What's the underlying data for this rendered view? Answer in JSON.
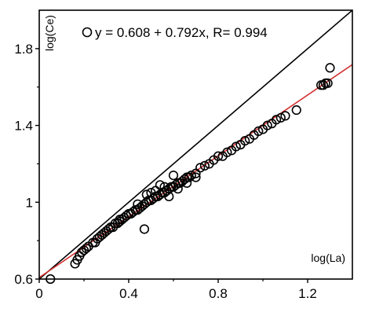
{
  "chart_data": {
    "type": "scatter",
    "title": "",
    "xlabel": "log(La)",
    "ylabel": "log(Ce)",
    "xlim": [
      0,
      1.4
    ],
    "ylim": [
      0.6,
      2.0
    ],
    "xticks": [
      0,
      0.4,
      0.8,
      1.2
    ],
    "xtick_labels": [
      "0",
      "0.4",
      "0.8",
      "1.2"
    ],
    "yticks": [
      0.6,
      1.0,
      1.4,
      1.8
    ],
    "ytick_labels": [
      "0.6",
      "1",
      "1.4",
      "1.8"
    ],
    "grid": false,
    "legend": {
      "placement": "top-left",
      "text": "y = 0.608 + 0.792x, R= 0.994"
    },
    "regression_line": {
      "intercept": 0.608,
      "slope": 0.792,
      "color": "#d32f2f"
    },
    "reference_line": {
      "label": "",
      "slope": 1,
      "intercept": 0.6,
      "color": "#000000"
    },
    "series": [
      {
        "marker": "open-circle",
        "x": [
          0.05,
          0.16,
          0.17,
          0.18,
          0.19,
          0.2,
          0.21,
          0.22,
          0.24,
          0.25,
          0.26,
          0.27,
          0.28,
          0.29,
          0.3,
          0.31,
          0.32,
          0.33,
          0.34,
          0.35,
          0.36,
          0.37,
          0.38,
          0.39,
          0.4,
          0.41,
          0.42,
          0.43,
          0.44,
          0.45,
          0.46,
          0.47,
          0.47,
          0.48,
          0.49,
          0.5,
          0.51,
          0.52,
          0.53,
          0.54,
          0.55,
          0.56,
          0.57,
          0.58,
          0.59,
          0.6,
          0.61,
          0.62,
          0.63,
          0.64,
          0.65,
          0.66,
          0.67,
          0.68,
          0.7,
          0.72,
          0.74,
          0.76,
          0.78,
          0.8,
          0.82,
          0.84,
          0.86,
          0.88,
          0.9,
          0.92,
          0.94,
          0.96,
          0.98,
          1.0,
          1.02,
          1.04,
          1.06,
          1.08,
          1.1,
          1.15,
          1.26,
          1.27,
          1.28,
          1.29,
          1.3,
          0.52,
          0.56,
          0.6,
          0.44,
          0.48,
          0.36,
          0.32,
          0.28,
          0.58,
          0.62,
          0.66,
          0.7,
          0.5,
          0.54
        ],
        "y": [
          0.6,
          0.68,
          0.7,
          0.72,
          0.74,
          0.75,
          0.76,
          0.77,
          0.79,
          0.79,
          0.81,
          0.82,
          0.83,
          0.84,
          0.85,
          0.86,
          0.87,
          0.87,
          0.89,
          0.89,
          0.9,
          0.91,
          0.92,
          0.93,
          0.94,
          0.94,
          0.95,
          0.96,
          0.96,
          0.97,
          0.98,
          0.86,
          0.99,
          1.0,
          1.01,
          1.01,
          1.02,
          1.03,
          1.03,
          1.04,
          1.05,
          1.05,
          1.06,
          1.07,
          1.08,
          1.08,
          1.09,
          1.1,
          1.1,
          1.11,
          1.12,
          1.13,
          1.13,
          1.14,
          1.15,
          1.18,
          1.19,
          1.2,
          1.22,
          1.24,
          1.24,
          1.26,
          1.27,
          1.29,
          1.3,
          1.32,
          1.33,
          1.35,
          1.37,
          1.38,
          1.4,
          1.41,
          1.43,
          1.44,
          1.45,
          1.48,
          1.61,
          1.61,
          1.62,
          1.62,
          1.7,
          1.06,
          1.08,
          1.14,
          0.99,
          1.04,
          0.91,
          0.87,
          0.83,
          1.03,
          1.07,
          1.1,
          1.13,
          1.05,
          1.09
        ]
      }
    ]
  }
}
